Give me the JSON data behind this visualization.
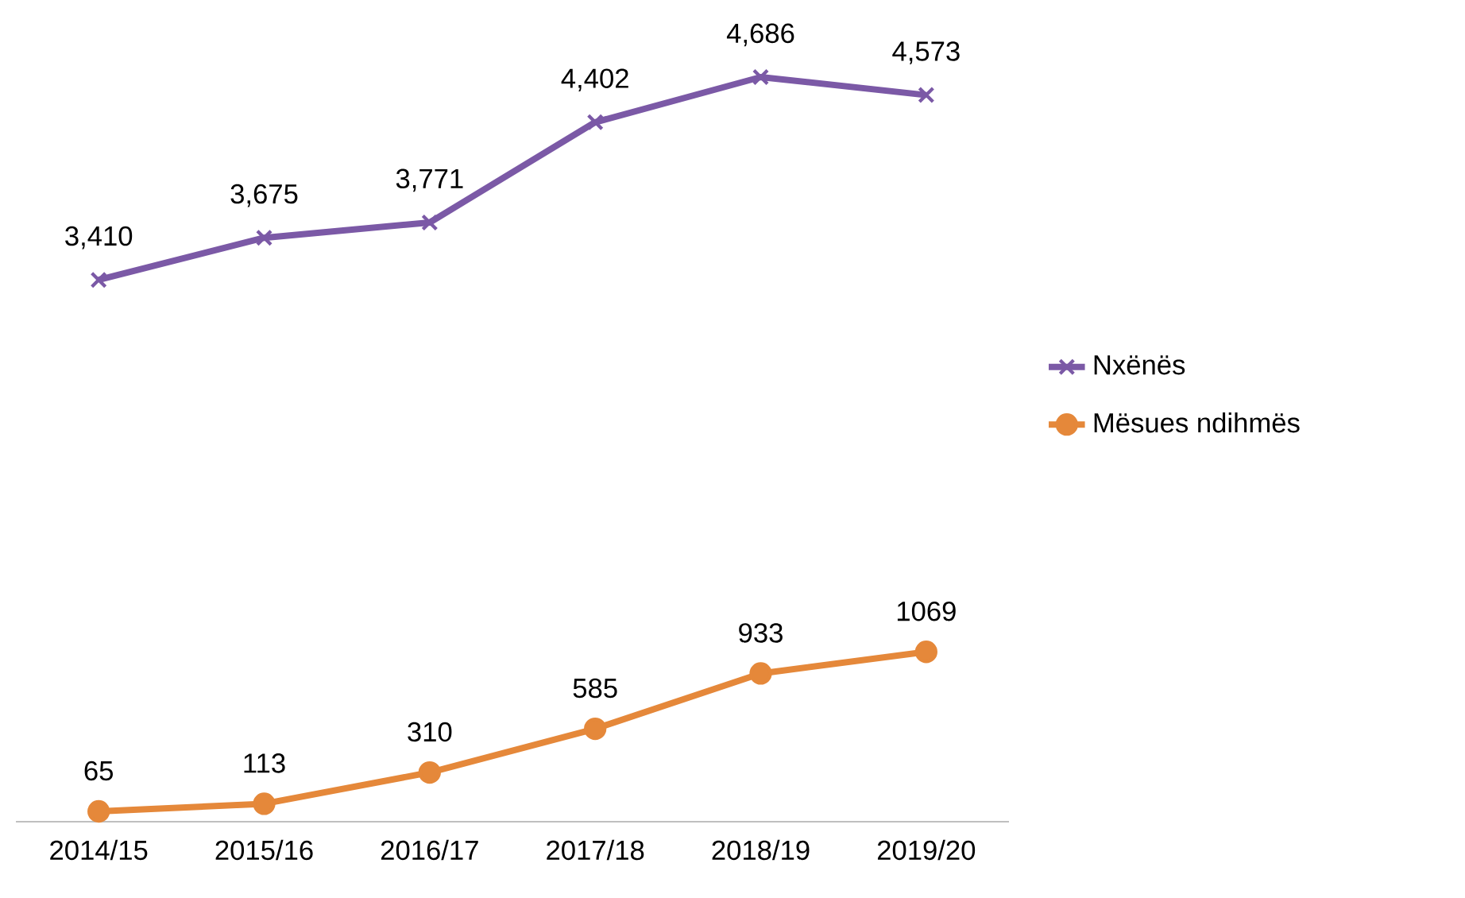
{
  "chart_data": {
    "type": "line",
    "categories": [
      "2014/15",
      "2015/16",
      "2016/17",
      "2017/18",
      "2018/19",
      "2019/20"
    ],
    "series": [
      {
        "name": "Nxënës",
        "color": "#7b59a6",
        "marker": "cross",
        "values": [
          3410,
          3675,
          3771,
          4402,
          4686,
          4573
        ],
        "value_labels": [
          "3,410",
          "3,675",
          "3,771",
          "4,402",
          "4,686",
          "4,573"
        ]
      },
      {
        "name": "Mësues ndihmës",
        "color": "#e5883a",
        "marker": "circle",
        "values": [
          65,
          113,
          310,
          585,
          933,
          1069
        ],
        "value_labels": [
          "65",
          "113",
          "310",
          "585",
          "933",
          "1069"
        ]
      }
    ],
    "tick_labels": "x",
    "legend": "right"
  }
}
